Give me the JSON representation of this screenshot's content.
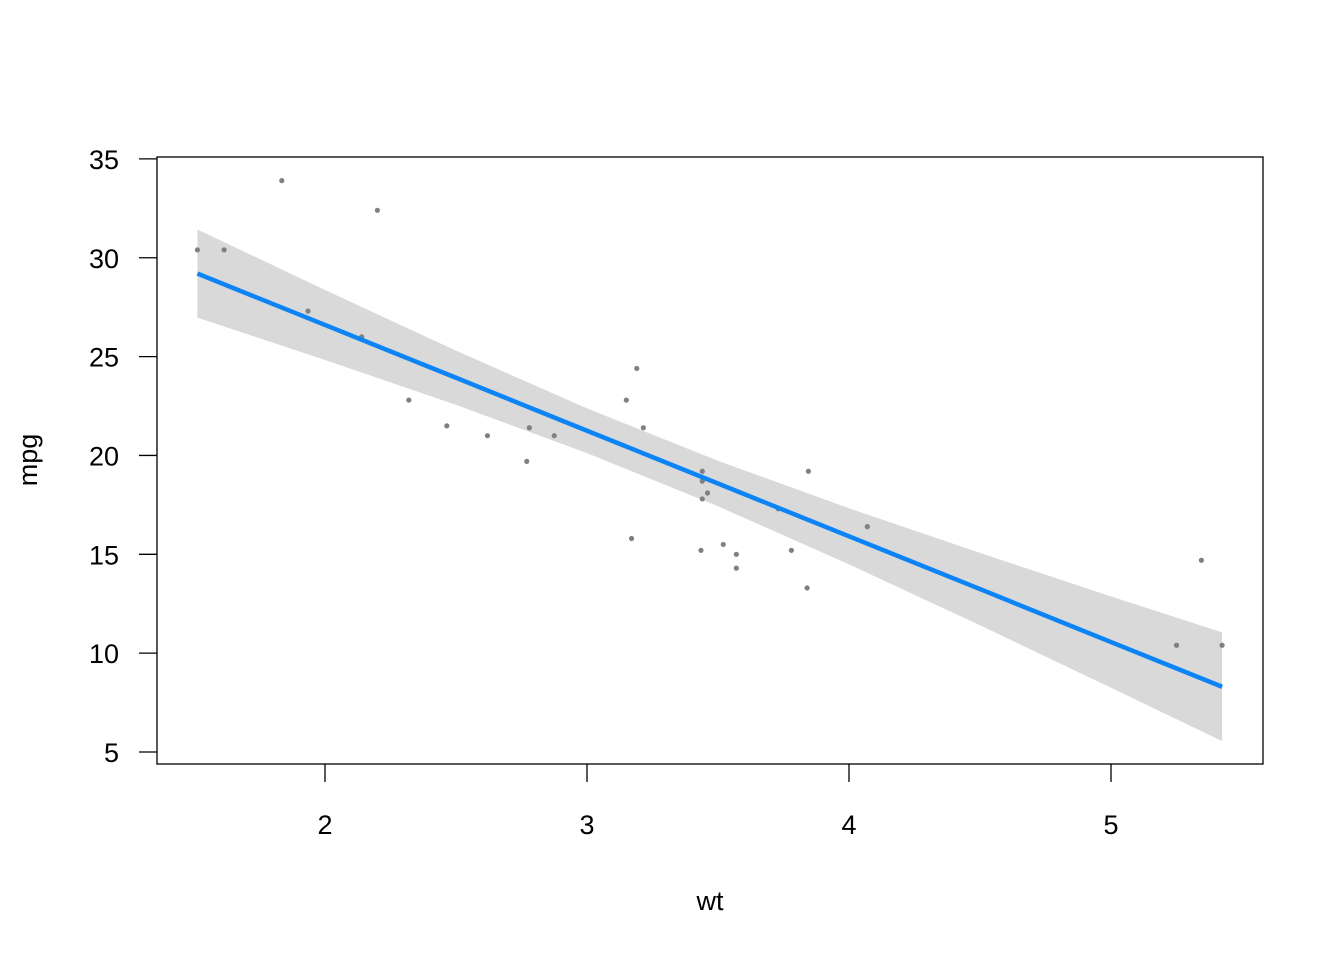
{
  "chart_data": {
    "type": "scatter",
    "title": "",
    "xlabel": "wt",
    "ylabel": "mpg",
    "xlim": [
      1.35,
      5.57
    ],
    "ylim": [
      4.5,
      35.2
    ],
    "xticks": [
      2,
      3,
      4,
      5
    ],
    "yticks": [
      5,
      10,
      15,
      20,
      25,
      30,
      35
    ],
    "grid": false,
    "legend": "none",
    "colors": {
      "points": "#808080",
      "fit_line": "#0d84f5",
      "band": "#d9d9d9",
      "axis": "#000000"
    },
    "points": [
      [
        2.62,
        21.0
      ],
      [
        2.875,
        21.0
      ],
      [
        2.32,
        22.8
      ],
      [
        3.215,
        21.4
      ],
      [
        3.44,
        18.7
      ],
      [
        3.46,
        18.1
      ],
      [
        3.57,
        14.3
      ],
      [
        3.19,
        24.4
      ],
      [
        3.15,
        22.8
      ],
      [
        3.44,
        19.2
      ],
      [
        3.44,
        17.8
      ],
      [
        4.07,
        16.4
      ],
      [
        3.73,
        17.3
      ],
      [
        3.78,
        15.2
      ],
      [
        5.25,
        10.4
      ],
      [
        5.424,
        10.4
      ],
      [
        5.345,
        14.7
      ],
      [
        2.2,
        32.4
      ],
      [
        1.615,
        30.4
      ],
      [
        1.835,
        33.9
      ],
      [
        2.465,
        21.5
      ],
      [
        3.52,
        15.5
      ],
      [
        3.435,
        15.2
      ],
      [
        3.84,
        13.3
      ],
      [
        3.845,
        19.2
      ],
      [
        1.935,
        27.3
      ],
      [
        2.14,
        26.0
      ],
      [
        1.513,
        30.4
      ],
      [
        3.17,
        15.8
      ],
      [
        2.77,
        19.7
      ],
      [
        3.57,
        15.0
      ],
      [
        2.78,
        21.4
      ]
    ],
    "fit": {
      "x": [
        1.513,
        2.0,
        2.5,
        3.0,
        3.5,
        4.0,
        4.5,
        5.0,
        5.424
      ],
      "y": [
        29.2,
        26.6,
        23.93,
        21.25,
        18.58,
        15.91,
        13.24,
        10.56,
        8.3
      ],
      "lower": [
        26.97,
        24.83,
        22.56,
        20.12,
        17.43,
        14.49,
        11.41,
        8.25,
        5.55
      ],
      "upper": [
        31.43,
        28.37,
        25.3,
        22.38,
        19.73,
        17.33,
        15.07,
        12.87,
        11.05
      ]
    }
  }
}
